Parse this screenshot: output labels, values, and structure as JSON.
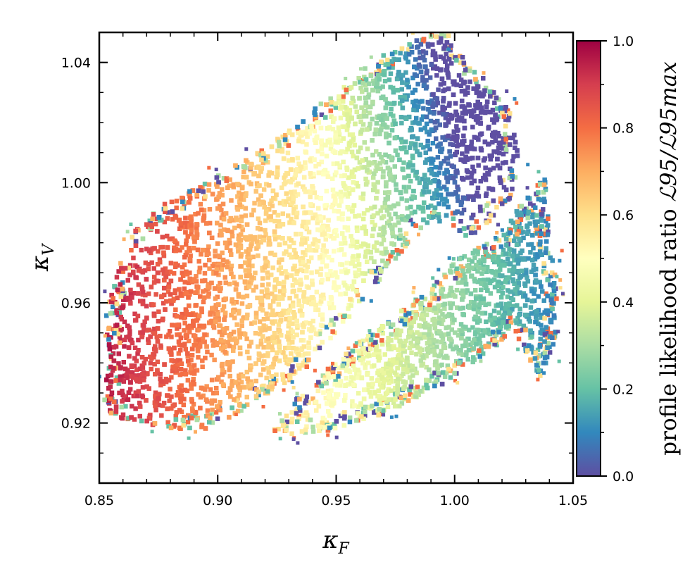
{
  "chart_data": {
    "type": "scatter",
    "xlabel": {
      "symbol": "κ",
      "subscript": "F"
    },
    "ylabel": {
      "symbol": "κ",
      "subscript": "V"
    },
    "xlim": [
      0.85,
      1.05
    ],
    "ylim": [
      0.9,
      1.05
    ],
    "xticks": [
      0.85,
      0.9,
      0.95,
      1.0,
      1.05
    ],
    "xtick_labels": [
      "0.85",
      "0.90",
      "0.95",
      "1.00",
      "1.05"
    ],
    "yticks": [
      0.92,
      0.96,
      1.0,
      1.04
    ],
    "ytick_labels": [
      "0.92",
      "0.96",
      "1.00",
      "1.04"
    ],
    "grid": false,
    "colorbar": {
      "label": "profile likelihood ratio",
      "label_math": "ℒ95/ℒ95max",
      "range": [
        0.0,
        1.0
      ],
      "ticks": [
        0.0,
        0.2,
        0.4,
        0.6,
        0.8,
        1.0
      ],
      "tick_labels": [
        "0.0",
        "0.2",
        "0.4",
        "0.6",
        "0.8",
        "1.0"
      ],
      "colormap": "Spectral_r",
      "stops": [
        "#5e4fa2",
        "#3288bd",
        "#66c2a5",
        "#abdda4",
        "#e6f598",
        "#ffffbf",
        "#fee08b",
        "#fdae61",
        "#f46d43",
        "#d53e4f",
        "#9e0142"
      ]
    },
    "regions": [
      {
        "name": "upper-left branch",
        "polygon": [
          [
            0.852,
            0.922
          ],
          [
            0.853,
            0.958
          ],
          [
            0.862,
            0.982
          ],
          [
            0.877,
            0.993
          ],
          [
            0.897,
            1.001
          ],
          [
            0.918,
            1.011
          ],
          [
            0.937,
            1.022
          ],
          [
            0.958,
            1.036
          ],
          [
            0.98,
            1.048
          ],
          [
            0.997,
            1.05
          ],
          [
            1.005,
            1.04
          ],
          [
            1.015,
            1.033
          ],
          [
            1.023,
            1.025
          ],
          [
            1.027,
            1.01
          ],
          [
            1.025,
            0.996
          ],
          [
            1.018,
            0.99
          ],
          [
            1.012,
            0.984
          ],
          [
            1.005,
            0.982
          ],
          [
            1.0,
            0.985
          ],
          [
            0.992,
            0.987
          ],
          [
            0.986,
            0.985
          ],
          [
            0.975,
            0.974
          ],
          [
            0.962,
            0.962
          ],
          [
            0.95,
            0.95
          ],
          [
            0.941,
            0.941
          ],
          [
            0.932,
            0.935
          ],
          [
            0.915,
            0.927
          ],
          [
            0.897,
            0.918
          ],
          [
            0.88,
            0.918
          ],
          [
            0.865,
            0.921
          ]
        ],
        "ratio_model": {
          "at_kF_0.85": 0.97,
          "at_kF_0.95": 0.5,
          "at_kF_1.00": 0.08,
          "peak_point": [
            0.853,
            0.952
          ]
        }
      },
      {
        "name": "lower-right branch",
        "polygon": [
          [
            0.922,
            0.916
          ],
          [
            0.945,
            0.917
          ],
          [
            0.97,
            0.923
          ],
          [
            0.995,
            0.933
          ],
          [
            1.015,
            0.944
          ],
          [
            1.025,
            0.951
          ],
          [
            1.032,
            0.94
          ],
          [
            1.036,
            0.935
          ],
          [
            1.043,
            0.947
          ],
          [
            1.043,
            0.965
          ],
          [
            1.04,
            0.982
          ],
          [
            1.038,
            1.002
          ],
          [
            1.03,
            0.995
          ],
          [
            1.022,
            0.986
          ],
          [
            1.016,
            0.98
          ],
          [
            1.008,
            0.979
          ],
          [
            1.002,
            0.975
          ],
          [
            0.99,
            0.965
          ],
          [
            0.975,
            0.956
          ],
          [
            0.958,
            0.946
          ],
          [
            0.945,
            0.937
          ],
          [
            0.933,
            0.928
          ]
        ],
        "ratio_model": {
          "at_kF_0.92": 0.62,
          "at_kF_0.98": 0.36,
          "at_kF_1.04": 0.1
        }
      }
    ]
  }
}
